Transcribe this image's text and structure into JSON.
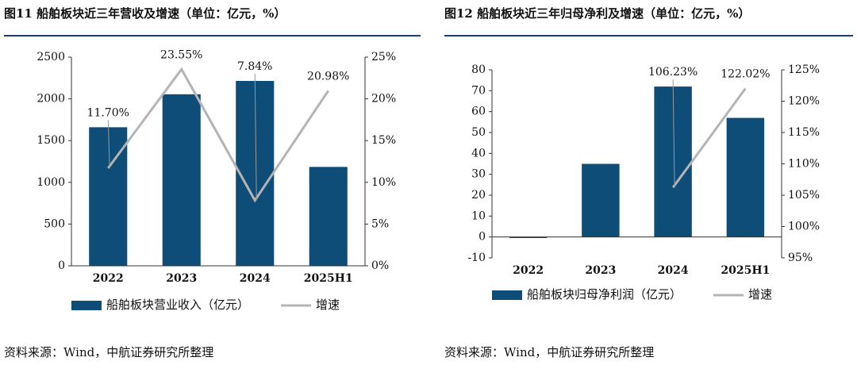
{
  "chart_data": [
    {
      "type": "bar-line",
      "title": "图11  船舶板块近三年营收及增速（单位：亿元，%）",
      "categories": [
        "2022",
        "2023",
        "2024",
        "2025H1"
      ],
      "series": [
        {
          "name": "船舶板块营业收入（亿元）",
          "color": "#0e4d78",
          "type": "bar",
          "values": [
            1660,
            2055,
            2215,
            1185
          ]
        },
        {
          "name": "增速",
          "color": "#b4b4b4",
          "type": "line",
          "axis": "y2",
          "values": [
            11.7,
            23.55,
            7.84,
            20.98
          ],
          "value_labels": [
            "11.70%",
            "23.55%",
            "7.84%",
            "20.98%"
          ]
        }
      ],
      "ylim": [
        0,
        2500
      ],
      "yticks": [
        0,
        500,
        1000,
        1500,
        2000,
        2500
      ],
      "y2lim": [
        0,
        25
      ],
      "y2ticks": [
        {
          "value": 0,
          "label": "0%"
        },
        {
          "value": 5,
          "label": "5%"
        },
        {
          "value": 10,
          "label": "10%"
        },
        {
          "value": 15,
          "label": "15%"
        },
        {
          "value": 20,
          "label": "20%"
        },
        {
          "value": 25,
          "label": "25%"
        }
      ],
      "source": "资料来源：Wind，中航证券研究所整理"
    },
    {
      "type": "bar-line",
      "title": "图12  船舶板块近三年归母净利及增速（单位：亿元，%）",
      "categories": [
        "2022",
        "2023",
        "2024",
        "2025H1"
      ],
      "series": [
        {
          "name": "船舶板块归母净利润（亿元）",
          "color": "#0e4d78",
          "type": "bar",
          "values": [
            -0.5,
            35,
            72,
            57
          ]
        },
        {
          "name": "增速",
          "color": "#b4b4b4",
          "type": "line",
          "axis": "y2",
          "values": [
            null,
            null,
            106.23,
            122.02
          ],
          "value_labels": [
            null,
            null,
            "106.23%",
            "122.02%"
          ]
        }
      ],
      "ylim": [
        -10,
        80
      ],
      "yticks": [
        -10,
        0,
        10,
        20,
        30,
        40,
        50,
        60,
        70,
        80
      ],
      "y2lim": [
        95,
        125
      ],
      "y2ticks": [
        {
          "value": 95,
          "label": "95%"
        },
        {
          "value": 100,
          "label": "100%"
        },
        {
          "value": 105,
          "label": "105%"
        },
        {
          "value": 110,
          "label": "110%"
        },
        {
          "value": 115,
          "label": "115%"
        },
        {
          "value": 120,
          "label": "120%"
        },
        {
          "value": 125,
          "label": "125%"
        }
      ],
      "source": "资料来源：Wind，中航证券研究所整理"
    }
  ]
}
